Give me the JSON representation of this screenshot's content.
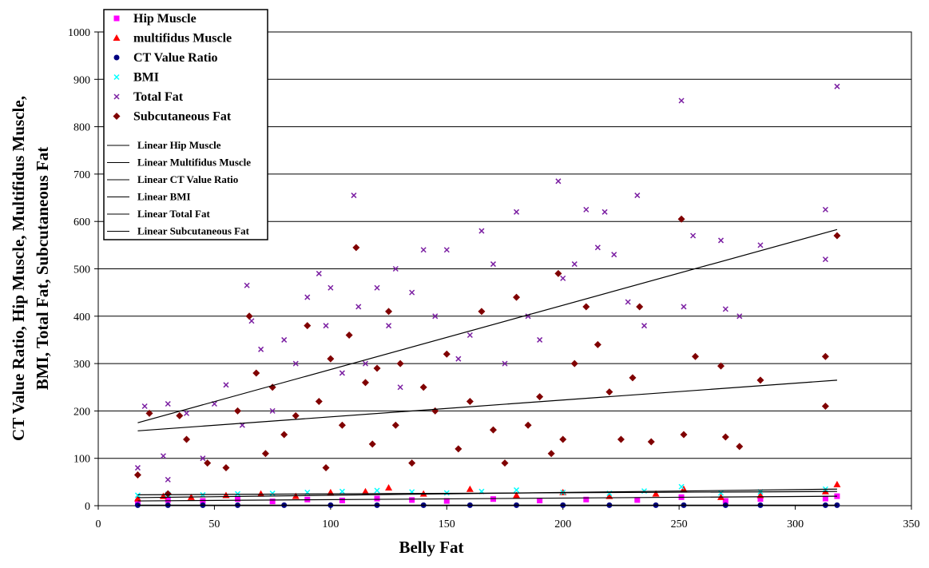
{
  "chart_data": {
    "type": "scatter",
    "xlabel": "Belly Fat",
    "ylabel": [
      "CT Value Ratio, Hip Muscle, Multifidus Muscle,",
      "BMI, Total Fat, Subcutaneous Fat"
    ],
    "xlim": [
      0,
      350
    ],
    "xticks": [
      0,
      50,
      100,
      150,
      200,
      250,
      300,
      350
    ],
    "ylim": [
      0,
      1000
    ],
    "yticks": [
      0,
      100,
      200,
      300,
      400,
      500,
      600,
      700,
      800,
      900,
      1000
    ],
    "grid": true,
    "legend": "upper left",
    "series": [
      {
        "name": "Hip Muscle",
        "color": "#ff00ff",
        "marker": "square",
        "x": [
          17,
          30,
          45,
          60,
          75,
          90,
          105,
          120,
          135,
          150,
          170,
          190,
          210,
          232,
          251,
          270,
          285,
          313,
          318
        ],
        "values": [
          8,
          12,
          10,
          14,
          9,
          13,
          11,
          15,
          12,
          10,
          14,
          11,
          13,
          12,
          18,
          10,
          14,
          15,
          20
        ]
      },
      {
        "name": "multifidus Muscle",
        "color": "#ff0000",
        "marker": "triangle",
        "x": [
          17,
          28,
          40,
          55,
          70,
          85,
          100,
          115,
          125,
          140,
          160,
          180,
          200,
          220,
          240,
          252,
          268,
          285,
          313,
          318
        ],
        "values": [
          15,
          20,
          18,
          22,
          25,
          20,
          28,
          30,
          38,
          25,
          35,
          22,
          28,
          20,
          25,
          35,
          18,
          22,
          30,
          45
        ]
      },
      {
        "name": "CT Value Ratio",
        "color": "#000080",
        "marker": "circle",
        "x": [
          17,
          30,
          45,
          60,
          80,
          100,
          120,
          140,
          160,
          180,
          200,
          220,
          240,
          252,
          270,
          285,
          313,
          318
        ],
        "values": [
          1,
          1,
          1,
          1,
          1,
          1,
          1,
          1,
          1,
          1,
          1,
          1,
          1,
          1,
          1,
          1,
          1,
          1
        ]
      },
      {
        "name": "BMI",
        "color": "#00ffff",
        "marker": "x",
        "x": [
          17,
          30,
          45,
          60,
          75,
          90,
          105,
          120,
          135,
          150,
          165,
          180,
          200,
          220,
          235,
          251,
          268,
          285,
          313
        ],
        "values": [
          22,
          24,
          23,
          25,
          26,
          28,
          30,
          32,
          29,
          27,
          30,
          33,
          28,
          26,
          31,
          40,
          27,
          29,
          35
        ]
      },
      {
        "name": "Total Fat",
        "color": "#7b1fa2",
        "marker": "x",
        "x": [
          17,
          20,
          28,
          30,
          30,
          38,
          45,
          50,
          55,
          62,
          64,
          66,
          70,
          75,
          80,
          85,
          90,
          95,
          98,
          100,
          105,
          110,
          112,
          115,
          120,
          125,
          128,
          130,
          135,
          140,
          145,
          150,
          155,
          160,
          165,
          170,
          175,
          180,
          185,
          190,
          198,
          200,
          205,
          210,
          215,
          218,
          222,
          228,
          232,
          235,
          251,
          252,
          256,
          268,
          270,
          276,
          285,
          313,
          313,
          318
        ],
        "values": [
          80,
          210,
          105,
          215,
          55,
          195,
          100,
          215,
          255,
          170,
          465,
          390,
          330,
          200,
          350,
          300,
          440,
          490,
          380,
          460,
          280,
          655,
          420,
          300,
          460,
          380,
          500,
          250,
          450,
          540,
          400,
          540,
          310,
          360,
          580,
          510,
          300,
          620,
          400,
          350,
          685,
          480,
          510,
          625,
          545,
          620,
          530,
          430,
          655,
          380,
          855,
          420,
          570,
          560,
          415,
          400,
          550,
          625,
          520,
          885
        ]
      },
      {
        "name": "Subcutaneous Fat",
        "color": "#800000",
        "marker": "diamond",
        "x": [
          17,
          22,
          30,
          35,
          38,
          47,
          55,
          60,
          65,
          68,
          72,
          75,
          80,
          85,
          90,
          95,
          98,
          100,
          105,
          108,
          111,
          115,
          118,
          120,
          125,
          128,
          130,
          135,
          140,
          145,
          150,
          155,
          160,
          165,
          170,
          175,
          180,
          185,
          190,
          195,
          198,
          200,
          205,
          210,
          215,
          220,
          225,
          230,
          233,
          238,
          251,
          252,
          257,
          268,
          270,
          276,
          285,
          313,
          313,
          318
        ],
        "values": [
          65,
          195,
          25,
          190,
          140,
          90,
          80,
          200,
          400,
          280,
          110,
          250,
          150,
          190,
          380,
          220,
          80,
          310,
          170,
          360,
          545,
          260,
          130,
          290,
          410,
          170,
          300,
          90,
          250,
          200,
          320,
          120,
          220,
          410,
          160,
          90,
          440,
          170,
          230,
          110,
          490,
          140,
          300,
          420,
          340,
          240,
          140,
          270,
          420,
          135,
          605,
          150,
          315,
          295,
          145,
          125,
          265,
          315,
          210,
          570
        ]
      }
    ],
    "trendlines": [
      {
        "name": "Linear Hip Muscle",
        "x": [
          17,
          318
        ],
        "values": [
          10,
          20
        ]
      },
      {
        "name": "Linear Multifidus Muscle",
        "x": [
          17,
          318
        ],
        "values": [
          17,
          35
        ]
      },
      {
        "name": "Linear CT Value Ratio",
        "x": [
          17,
          318
        ],
        "values": [
          1,
          1
        ]
      },
      {
        "name": "Linear BMI",
        "x": [
          17,
          318
        ],
        "values": [
          23,
          30
        ]
      },
      {
        "name": "Linear Total Fat",
        "x": [
          17,
          318
        ],
        "values": [
          175,
          583
        ]
      },
      {
        "name": "Linear Subcutaneous Fat",
        "x": [
          17,
          318
        ],
        "values": [
          158,
          265
        ]
      }
    ]
  }
}
